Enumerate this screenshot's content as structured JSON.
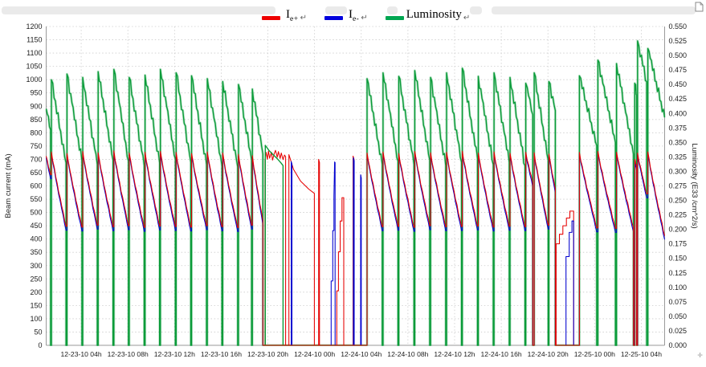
{
  "legend": {
    "items": [
      {
        "label_main": "I",
        "label_sub": "e+",
        "return_mark": "↵",
        "color": "#ee0000"
      },
      {
        "label_main": "I",
        "label_sub": "e-",
        "return_mark": "↵",
        "color": "#0000dd"
      },
      {
        "label_main": "Luminosity",
        "label_sub": "",
        "return_mark": "↵",
        "color": "#00a651"
      }
    ]
  },
  "page": {
    "corner_glyph": "✛"
  },
  "chart_data": {
    "type": "line",
    "title": "",
    "x_axis": {
      "range_hours": [
        0,
        53
      ],
      "first_tick_hour": 3,
      "tick_interval_hours": 4,
      "tick_labels": [
        "12-23-10 04h",
        "12-23-10 08h",
        "12-23-10 12h",
        "12-23-10 16h",
        "12-23-10 20h",
        "12-24-10 00h",
        "12-24-10 04h",
        "12-24-10 08h",
        "12-24-10 12h",
        "12-24-10 16h",
        "12-24-10 20h",
        "12-25-10 00h",
        "12-25-10 04h"
      ]
    },
    "y_left": {
      "label": "Beam current (mA)",
      "min": 0,
      "max": 1200,
      "step": 50
    },
    "y_right": {
      "label": "Luminosity (E33 /cm^2/s)",
      "min": 0,
      "max": 0.55,
      "step": 0.025,
      "decimals": 3
    },
    "grid": {
      "color": "#cccccc",
      "style": "dotted"
    },
    "series": [
      {
        "name": "I e+",
        "axis": "left",
        "color": "#e60000"
      },
      {
        "name": "I e-",
        "axis": "left",
        "color": "#0000cf"
      },
      {
        "name": "Luminosity",
        "axis": "right",
        "color": "#0a9b39"
      }
    ],
    "fills_format": [
      "t_start_h",
      "duration_h",
      "current_peak_mA",
      "current_end_mA",
      "lumi_peak_E33",
      "lumi_end_E33",
      "from_zero",
      "dump_end",
      "continued_at_left_edge"
    ],
    "fills": [
      [
        0.0,
        0.38,
        712,
        642,
        0.408,
        0.372,
        0,
        0,
        1
      ],
      [
        0.45,
        1.25,
        728,
        448,
        0.458,
        0.315,
        0,
        0,
        0
      ],
      [
        1.78,
        1.28,
        722,
        445,
        0.468,
        0.318,
        0,
        0,
        0
      ],
      [
        3.13,
        1.25,
        730,
        452,
        0.462,
        0.312,
        0,
        0,
        0
      ],
      [
        4.45,
        1.28,
        725,
        446,
        0.472,
        0.32,
        0,
        0,
        0
      ],
      [
        5.8,
        1.25,
        732,
        450,
        0.476,
        0.318,
        0,
        0,
        0
      ],
      [
        7.12,
        1.28,
        724,
        444,
        0.462,
        0.31,
        0,
        0,
        0
      ],
      [
        8.47,
        1.25,
        727,
        449,
        0.466,
        0.315,
        0,
        0,
        0
      ],
      [
        9.79,
        1.28,
        730,
        447,
        0.476,
        0.322,
        0,
        0,
        0
      ],
      [
        11.14,
        1.25,
        726,
        445,
        0.47,
        0.316,
        0,
        0,
        0
      ],
      [
        12.46,
        1.28,
        722,
        450,
        0.465,
        0.312,
        0,
        0,
        0
      ],
      [
        13.81,
        1.25,
        728,
        446,
        0.46,
        0.31,
        0,
        0,
        0
      ],
      [
        15.13,
        1.28,
        724,
        443,
        0.455,
        0.308,
        0,
        0,
        0
      ],
      [
        16.48,
        1.12,
        719,
        452,
        0.45,
        0.32,
        0,
        0,
        0
      ],
      [
        17.67,
        0.9,
        714,
        470,
        0.442,
        0.33,
        0,
        1,
        0
      ],
      [
        27.5,
        1.3,
        724,
        446,
        0.46,
        0.312,
        1,
        0,
        0
      ],
      [
        28.87,
        1.28,
        728,
        448,
        0.47,
        0.318,
        0,
        0,
        0
      ],
      [
        30.22,
        1.3,
        722,
        444,
        0.464,
        0.312,
        0,
        0,
        0
      ],
      [
        31.59,
        1.28,
        730,
        450,
        0.474,
        0.32,
        0,
        0,
        0
      ],
      [
        32.94,
        1.3,
        725,
        446,
        0.462,
        0.31,
        0,
        0,
        0
      ],
      [
        34.31,
        1.28,
        727,
        447,
        0.47,
        0.316,
        0,
        0,
        0
      ],
      [
        35.66,
        1.3,
        731,
        449,
        0.478,
        0.322,
        0,
        0,
        0
      ],
      [
        37.03,
        1.28,
        724,
        445,
        0.464,
        0.312,
        0,
        0,
        0
      ],
      [
        38.38,
        1.3,
        728,
        448,
        0.47,
        0.316,
        0,
        0,
        0
      ],
      [
        39.75,
        1.28,
        723,
        446,
        0.462,
        0.31,
        0,
        0,
        0
      ],
      [
        41.1,
        0.6,
        727,
        612,
        0.452,
        0.398,
        0,
        1,
        0
      ],
      [
        41.82,
        1.2,
        725,
        452,
        0.47,
        0.32,
        1,
        0,
        0
      ],
      [
        43.08,
        0.55,
        720,
        590,
        0.455,
        0.405,
        0,
        1,
        0
      ],
      [
        45.7,
        1.48,
        726,
        442,
        0.465,
        0.345,
        1,
        0,
        0
      ],
      [
        47.28,
        1.5,
        730,
        440,
        0.492,
        0.35,
        0,
        0,
        0
      ],
      [
        48.88,
        1.44,
        727,
        444,
        0.486,
        0.33,
        0,
        1,
        0
      ],
      [
        50.44,
        0.16,
        700,
        672,
        0.452,
        0.432,
        1,
        1,
        0
      ],
      [
        50.68,
        0.78,
        724,
        570,
        0.525,
        0.455,
        1,
        0,
        0
      ],
      [
        51.56,
        1.6,
        728,
        380,
        0.512,
        0.38,
        0,
        0,
        0
      ]
    ],
    "extra_segments": [
      {
        "series": "e+",
        "scale": "mA",
        "points": [
          [
            18.75,
            0
          ],
          [
            18.75,
            698
          ],
          [
            18.85,
            726
          ],
          [
            18.95,
            700
          ],
          [
            19.05,
            731
          ],
          [
            19.15,
            704
          ],
          [
            19.3,
            727
          ],
          [
            19.4,
            697
          ],
          [
            19.55,
            722
          ],
          [
            19.65,
            734
          ],
          [
            19.8,
            708
          ],
          [
            19.9,
            729
          ],
          [
            20.05,
            703
          ],
          [
            20.15,
            724
          ],
          [
            20.3,
            699
          ],
          [
            20.42,
            716
          ],
          [
            20.52,
            710
          ],
          [
            20.52,
            0
          ]
        ]
      },
      {
        "series": "e+",
        "scale": "mA",
        "points": [
          [
            20.8,
            0
          ],
          [
            20.8,
            718
          ],
          [
            21.2,
            662
          ],
          [
            21.8,
            618
          ],
          [
            22.5,
            588
          ],
          [
            22.98,
            572
          ],
          [
            22.98,
            0
          ]
        ]
      },
      {
        "series": "e+",
        "scale": "mA",
        "points": [
          [
            23.35,
            0
          ],
          [
            23.35,
            700
          ],
          [
            23.42,
            688
          ],
          [
            23.42,
            0
          ]
        ]
      },
      {
        "series": "e+",
        "scale": "mA",
        "points": [
          [
            24.9,
            0
          ],
          [
            24.9,
            205
          ],
          [
            25.05,
            205
          ],
          [
            25.05,
            352
          ],
          [
            25.2,
            352
          ],
          [
            25.2,
            468
          ],
          [
            25.35,
            468
          ],
          [
            25.35,
            556
          ],
          [
            25.5,
            556
          ],
          [
            25.5,
            0
          ]
        ]
      },
      {
        "series": "e+",
        "scale": "mA",
        "points": [
          [
            26.3,
            0
          ],
          [
            26.3,
            712
          ],
          [
            26.38,
            700
          ],
          [
            26.38,
            0
          ]
        ]
      },
      {
        "series": "e+",
        "scale": "mA",
        "points": [
          [
            43.7,
            0
          ],
          [
            43.7,
            382
          ],
          [
            43.98,
            382
          ],
          [
            43.98,
            418
          ],
          [
            44.28,
            418
          ],
          [
            44.28,
            450
          ],
          [
            44.58,
            450
          ],
          [
            44.58,
            479
          ],
          [
            44.88,
            479
          ],
          [
            44.88,
            505
          ],
          [
            45.2,
            505
          ],
          [
            45.2,
            0
          ]
        ]
      },
      {
        "series": "e-",
        "scale": "mA",
        "points": [
          [
            21.0,
            0
          ],
          [
            21.0,
            692
          ],
          [
            21.06,
            682
          ],
          [
            21.06,
            0
          ]
        ]
      },
      {
        "series": "e-",
        "scale": "mA",
        "points": [
          [
            24.42,
            0
          ],
          [
            24.42,
            242
          ],
          [
            24.56,
            242
          ],
          [
            24.56,
            432
          ],
          [
            24.66,
            432
          ],
          [
            24.66,
            562
          ],
          [
            24.72,
            690
          ],
          [
            24.76,
            688
          ],
          [
            24.76,
            0
          ]
        ]
      },
      {
        "series": "e-",
        "scale": "mA",
        "points": [
          [
            26.33,
            0
          ],
          [
            26.33,
            706
          ],
          [
            26.4,
            694
          ],
          [
            26.4,
            0
          ]
        ]
      },
      {
        "series": "e-",
        "scale": "mA",
        "points": [
          [
            26.95,
            0
          ],
          [
            26.95,
            642
          ],
          [
            27.0,
            630
          ],
          [
            27.0,
            0
          ]
        ]
      },
      {
        "series": "e-",
        "scale": "mA",
        "points": [
          [
            44.55,
            0
          ],
          [
            44.55,
            334
          ],
          [
            44.82,
            334
          ],
          [
            44.82,
            425
          ],
          [
            45.06,
            425
          ],
          [
            45.06,
            468
          ],
          [
            45.2,
            468
          ],
          [
            45.2,
            0
          ]
        ]
      },
      {
        "series": "lum",
        "scale": "E33",
        "points": [
          [
            18.78,
            0
          ],
          [
            18.78,
            0.345
          ],
          [
            19.1,
            0.336
          ],
          [
            19.4,
            0.33
          ],
          [
            19.8,
            0.322
          ],
          [
            20.15,
            0.314
          ],
          [
            20.3,
            0.31
          ],
          [
            20.3,
            0
          ]
        ]
      }
    ]
  }
}
